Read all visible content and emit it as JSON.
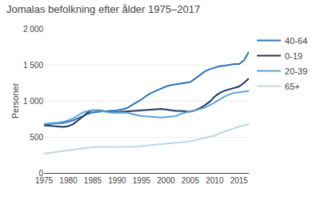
{
  "chart_data": {
    "type": "line",
    "title": "Jomalas befolkning efter ålder 1975–2017",
    "y_label": "Personer",
    "x": [
      1975,
      1976,
      1977,
      1978,
      1979,
      1980,
      1981,
      1982,
      1983,
      1984,
      1985,
      1986,
      1987,
      1988,
      1989,
      1990,
      1991,
      1992,
      1993,
      1994,
      1995,
      1996,
      1997,
      1998,
      1999,
      2000,
      2001,
      2002,
      2003,
      2004,
      2005,
      2006,
      2007,
      2008,
      2009,
      2010,
      2011,
      2012,
      2013,
      2014,
      2015,
      2016,
      2017
    ],
    "series": [
      {
        "name": "40-64",
        "color": "#2e75b6",
        "values": [
          670,
          680,
          685,
          690,
          695,
          710,
          730,
          760,
          790,
          820,
          840,
          850,
          855,
          858,
          860,
          870,
          880,
          900,
          940,
          980,
          1020,
          1070,
          1110,
          1140,
          1170,
          1200,
          1220,
          1230,
          1240,
          1250,
          1260,
          1310,
          1360,
          1410,
          1440,
          1460,
          1480,
          1490,
          1500,
          1510,
          1510,
          1560,
          1680
        ]
      },
      {
        "name": "0-19",
        "color": "#1f3864",
        "values": [
          660,
          655,
          650,
          645,
          640,
          650,
          680,
          730,
          790,
          840,
          870,
          870,
          860,
          850,
          840,
          845,
          850,
          855,
          860,
          865,
          870,
          875,
          880,
          885,
          890,
          880,
          870,
          860,
          860,
          855,
          850,
          870,
          900,
          940,
          990,
          1060,
          1110,
          1140,
          1160,
          1180,
          1200,
          1250,
          1310
        ]
      },
      {
        "name": "20-39",
        "color": "#5ba3d9",
        "values": [
          680,
          690,
          695,
          700,
          710,
          730,
          760,
          800,
          840,
          860,
          870,
          865,
          855,
          845,
          835,
          840,
          840,
          835,
          820,
          805,
          790,
          785,
          780,
          775,
          770,
          775,
          780,
          790,
          820,
          840,
          855,
          870,
          885,
          910,
          940,
          980,
          1020,
          1060,
          1090,
          1110,
          1120,
          1130,
          1140
        ]
      },
      {
        "name": "65+",
        "color": "#bdd7ee",
        "values": [
          270,
          278,
          285,
          292,
          300,
          315,
          325,
          335,
          345,
          352,
          358,
          360,
          360,
          360,
          358,
          360,
          362,
          363,
          365,
          368,
          375,
          385,
          392,
          398,
          403,
          410,
          415,
          420,
          425,
          430,
          440,
          455,
          470,
          490,
          505,
          520,
          550,
          575,
          600,
          625,
          645,
          660,
          685
        ]
      }
    ],
    "xlim": [
      1975,
      2017
    ],
    "xticks": [
      1975,
      1980,
      1985,
      1990,
      1995,
      2000,
      2005,
      2010,
      2015
    ],
    "ylim": [
      0,
      2000
    ],
    "yticks": [
      0,
      500,
      {
        "value": 1000,
        "label": "1 000"
      },
      {
        "value": 1500,
        "label": "1 500"
      },
      {
        "value": 2000,
        "label": "2 000"
      }
    ],
    "grid": "y",
    "legend": "right"
  }
}
